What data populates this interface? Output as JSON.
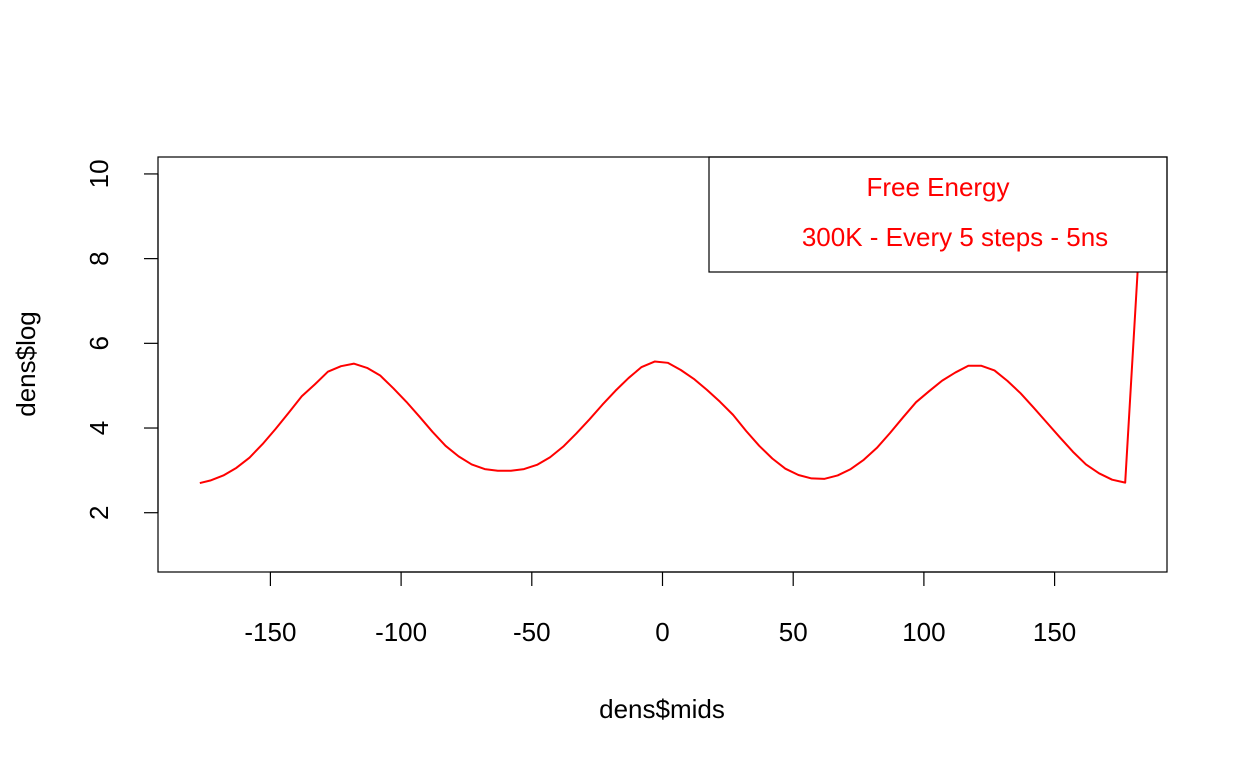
{
  "chart_data": {
    "type": "line",
    "xlabel": "dens$mids",
    "ylabel": "dens$log",
    "xlim": [
      -193,
      193
    ],
    "ylim": [
      0.6,
      10.4
    ],
    "x_ticks": [
      -150,
      -100,
      -50,
      0,
      50,
      100,
      150
    ],
    "x_tick_labels": [
      "-150",
      "-100",
      "-50",
      "0",
      "50",
      "100",
      "150"
    ],
    "y_ticks": [
      2,
      4,
      6,
      8,
      10
    ],
    "y_tick_labels": [
      "2",
      "4",
      "6",
      "8",
      "10"
    ],
    "legend": {
      "position": "top-right",
      "lines": [
        "Free Energy",
        "300K - Every 5 steps - 5ns"
      ]
    },
    "colors": {
      "line": "#ff0000",
      "legend_text": "#ff0000",
      "axes": "#000000"
    },
    "grid": false,
    "series": [
      {
        "x": [
          -177,
          -173,
          -168,
          -163,
          -158,
          -153,
          -148,
          -143,
          -138,
          -133,
          -128,
          -123,
          -118,
          -113,
          -108,
          -103,
          -98,
          -93,
          -88,
          -83,
          -78,
          -73,
          -68,
          -63,
          -58,
          -53,
          -48,
          -43,
          -38,
          -33,
          -28,
          -23,
          -18,
          -13,
          -8,
          -3,
          2,
          7,
          12,
          17,
          22,
          27,
          32,
          37,
          42,
          47,
          52,
          57,
          62,
          67,
          72,
          77,
          82,
          87,
          92,
          97,
          102,
          107,
          112,
          117,
          122,
          127,
          132,
          137,
          142,
          147,
          152,
          157,
          162,
          167,
          172,
          177,
          182
        ],
        "y": [
          2.7,
          2.76,
          2.88,
          3.06,
          3.3,
          3.62,
          3.98,
          4.36,
          4.75,
          5.03,
          5.33,
          5.46,
          5.52,
          5.42,
          5.24,
          4.94,
          4.62,
          4.27,
          3.91,
          3.58,
          3.33,
          3.14,
          3.03,
          2.99,
          2.99,
          3.03,
          3.13,
          3.31,
          3.56,
          3.87,
          4.2,
          4.55,
          4.88,
          5.18,
          5.44,
          5.57,
          5.54,
          5.37,
          5.16,
          4.9,
          4.62,
          4.31,
          3.93,
          3.58,
          3.28,
          3.04,
          2.89,
          2.81,
          2.8,
          2.88,
          3.03,
          3.25,
          3.53,
          3.88,
          4.25,
          4.61,
          4.87,
          5.12,
          5.31,
          5.47,
          5.47,
          5.36,
          5.11,
          4.82,
          4.48,
          4.13,
          3.78,
          3.44,
          3.14,
          2.93,
          2.78,
          2.71,
          7.95
        ]
      }
    ]
  }
}
